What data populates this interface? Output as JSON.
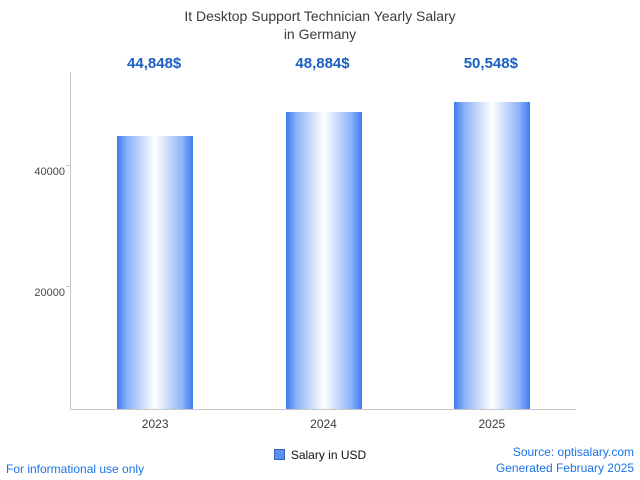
{
  "title": {
    "line1": "It Desktop Support Technician Yearly Salary",
    "line2": "in Germany"
  },
  "legend": {
    "label": "Salary in USD",
    "marker_color": "#5b8ff2"
  },
  "footer": {
    "disclaimer": "For informational use only",
    "source": "Source: optisalary.com",
    "generated": "Generated February 2025"
  },
  "colors": {
    "value_label": "#1a5fc4",
    "footer_text": "#1a73e8",
    "bar_edge": "#3d7bf2",
    "bar_center": "#ffffff",
    "axis": "#c8c8c8",
    "title_text": "#3c3c3c"
  },
  "chart_data": {
    "type": "bar",
    "title": "It Desktop Support Technician Yearly Salary in Germany",
    "categories": [
      "2023",
      "2024",
      "2025"
    ],
    "values": [
      44848,
      48884,
      50548
    ],
    "value_labels": [
      "44,848$",
      "48,884$",
      "50,548$"
    ],
    "series_name": "Salary in USD",
    "xlabel": "",
    "ylabel": "",
    "ylim": [
      0,
      55400
    ],
    "yticks": [
      20000,
      40000
    ],
    "grid": false,
    "legend_position": "bottom"
  }
}
